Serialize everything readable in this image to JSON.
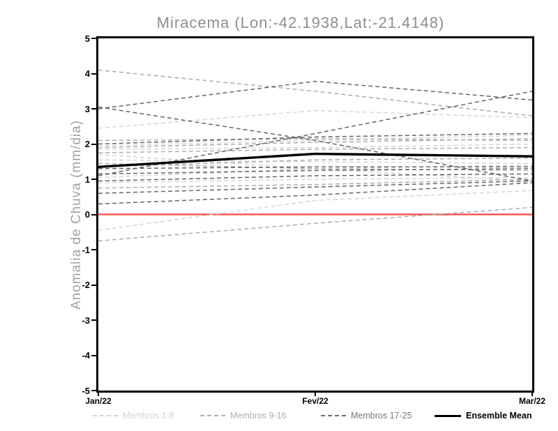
{
  "page": {
    "background": "#ffffff"
  },
  "chart_data": {
    "type": "line",
    "title": "Miracema (Lon:-42.1938,Lat:-21.4148)",
    "ylabel": "Anomalia de Chuva (mm/dia)",
    "x_ticklabels": [
      "Jan/22",
      "Fev/22",
      "Mar/22"
    ],
    "ylim": [
      -5,
      5
    ],
    "yticks": [
      5,
      4,
      3,
      2,
      1,
      0,
      -1,
      -2,
      -3,
      -4,
      -5
    ],
    "grid": false,
    "legend_position": "bottom",
    "zero_line": {
      "value": 0,
      "color": "#fa4545"
    },
    "series_groups": [
      {
        "name": "Membros 1-8",
        "color": "#d6d6d6",
        "style": "dashed",
        "lines": [
          [
            2.45,
            2.95,
            2.75
          ],
          [
            1.95,
            2.1,
            2.25
          ],
          [
            1.85,
            1.9,
            2.0
          ],
          [
            1.55,
            1.5,
            1.45
          ],
          [
            1.05,
            1.3,
            1.4
          ],
          [
            0.9,
            1.0,
            1.05
          ],
          [
            1.7,
            1.3,
            0.95
          ],
          [
            -0.45,
            0.4,
            0.68
          ]
        ]
      },
      {
        "name": "Membros 9-16",
        "color": "#acacac",
        "style": "dashed",
        "lines": [
          [
            4.1,
            3.5,
            2.8
          ],
          [
            2.1,
            2.15,
            2.1
          ],
          [
            1.9,
            2.05,
            2.15
          ],
          [
            1.75,
            1.85,
            1.9
          ],
          [
            1.45,
            1.3,
            1.25
          ],
          [
            1.35,
            1.55,
            1.6
          ],
          [
            0.75,
            0.85,
            1.0
          ],
          [
            -0.75,
            -0.25,
            0.2
          ]
        ]
      },
      {
        "name": "Membros 17-25",
        "color": "#646464",
        "style": "dashed",
        "lines": [
          [
            3.05,
            2.1,
            0.95
          ],
          [
            3.0,
            3.78,
            3.25
          ],
          [
            1.1,
            2.3,
            3.5
          ],
          [
            2.0,
            2.2,
            2.3
          ],
          [
            1.3,
            1.35,
            1.35
          ],
          [
            1.15,
            1.25,
            1.3
          ],
          [
            0.95,
            1.1,
            1.15
          ],
          [
            0.6,
            0.78,
            0.95
          ],
          [
            0.3,
            0.55,
            0.9
          ]
        ]
      },
      {
        "name": "Ensemble Mean",
        "color": "#000000",
        "style": "solid",
        "lines": [
          [
            1.35,
            1.72,
            1.65
          ]
        ]
      }
    ]
  },
  "legend": {
    "entries": [
      {
        "label": "Membros 1-8",
        "swatch_color": "#d6d6d6",
        "text_color": "#d2d2d2",
        "style": "dashed",
        "bold": false
      },
      {
        "label": "Membros 9-16",
        "swatch_color": "#acacac",
        "text_color": "#aeaeae",
        "style": "dashed",
        "bold": false
      },
      {
        "label": "Membros 17-25",
        "swatch_color": "#6e6e6e",
        "text_color": "#787878",
        "style": "dashed",
        "bold": false
      },
      {
        "label": "Ensemble Mean",
        "swatch_color": "#000000",
        "text_color": "#000000",
        "style": "solid",
        "bold": true
      }
    ]
  }
}
